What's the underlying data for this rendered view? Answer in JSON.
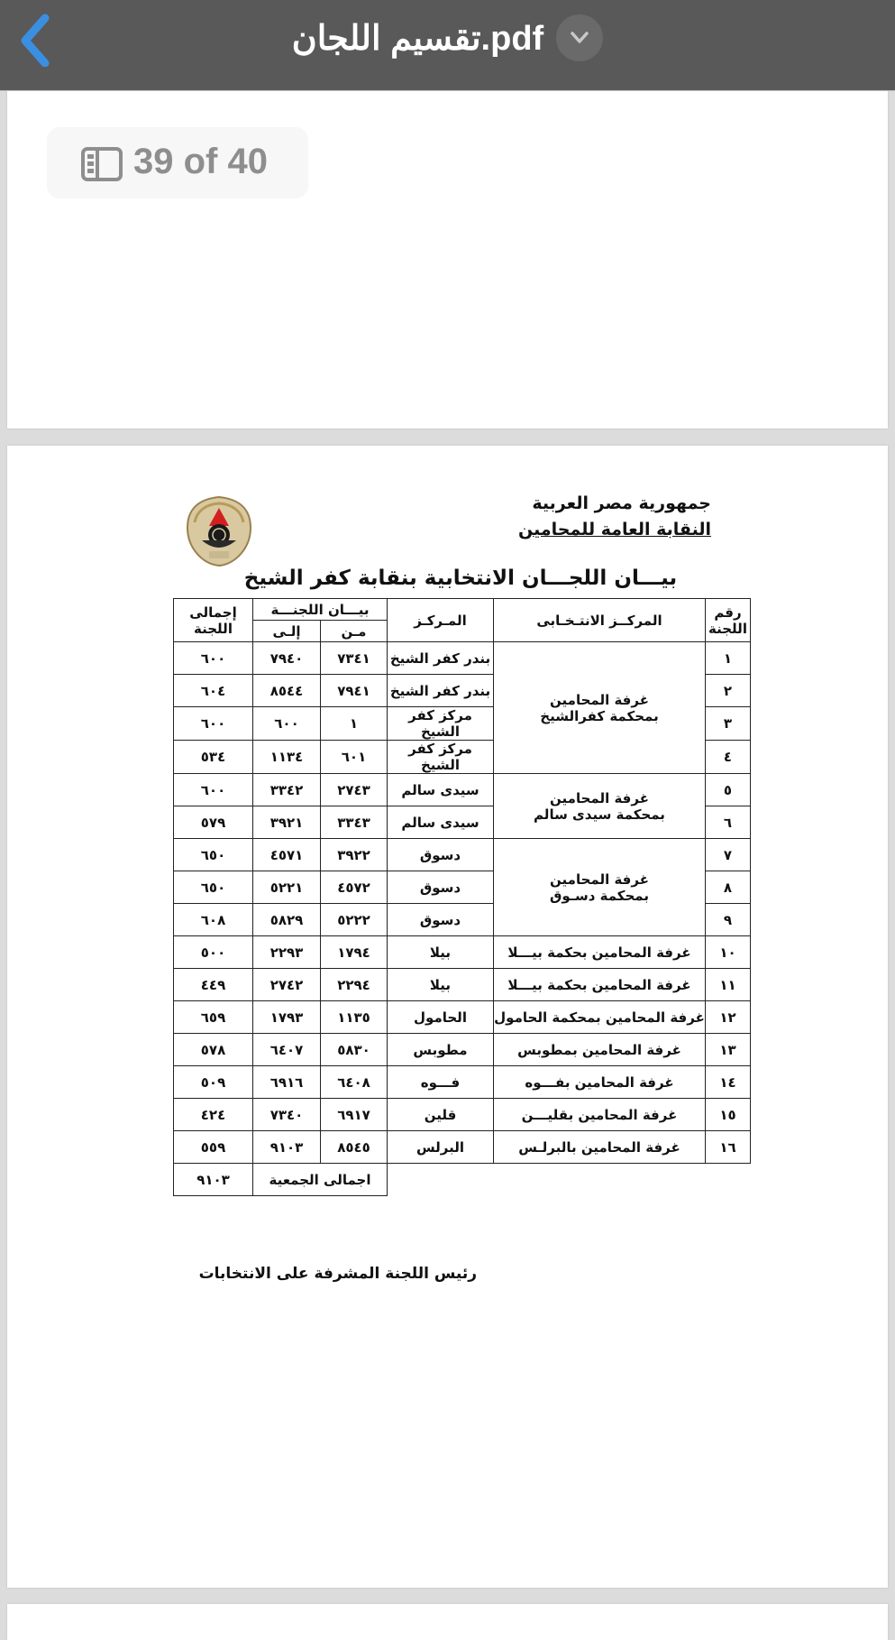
{
  "topbar": {
    "title": "تقسيم اللجان.pdf",
    "back_icon": "chevron-left-icon",
    "menu_icon": "chevron-down-icon",
    "accent": "#3b8fe0"
  },
  "page_badge": {
    "label": "39 of 40",
    "icon": "sidebar-icon"
  },
  "document": {
    "header_line1": "جمهورية مصر العربية",
    "header_line2": "النقابة العامة للمحامين",
    "logo_text": "1912",
    "title": "بيـــان اللجـــان الانتخابية بنقابة كفر الشيخ",
    "table": {
      "headers": {
        "num": "رقم اللجنة",
        "electoral": "المركــز الانتـخـابى",
        "center": "المـركـز",
        "range": "بيـــان اللجنـــة",
        "from": "مـن",
        "to": "إلـى",
        "total": "إجمالى اللجنة"
      },
      "groups": [
        {
          "electoral": "غرفة المحامين بمحكمة كفرالشيخ",
          "rows": [
            {
              "num": "١",
              "center": "بندر كفر الشيخ",
              "from": "٧٣٤١",
              "to": "٧٩٤٠",
              "total": "٦٠٠"
            },
            {
              "num": "٢",
              "center": "بندر كفر الشيخ",
              "from": "٧٩٤١",
              "to": "٨٥٤٤",
              "total": "٦٠٤"
            },
            {
              "num": "٣",
              "center": "مركز كفر الشيخ",
              "from": "١",
              "to": "٦٠٠",
              "total": "٦٠٠"
            },
            {
              "num": "٤",
              "center": "مركز كفر الشيخ",
              "from": "٦٠١",
              "to": "١١٣٤",
              "total": "٥٣٤"
            }
          ]
        },
        {
          "electoral": "غرفة المحامين بمحكمة سيدى سالم",
          "rows": [
            {
              "num": "٥",
              "center": "سيدى سالم",
              "from": "٢٧٤٣",
              "to": "٣٣٤٢",
              "total": "٦٠٠"
            },
            {
              "num": "٦",
              "center": "سيدى سالم",
              "from": "٣٣٤٣",
              "to": "٣٩٢١",
              "total": "٥٧٩"
            }
          ]
        },
        {
          "electoral": "غرفة المحامين بمحكمة دسـوق",
          "rows": [
            {
              "num": "٧",
              "center": "دسوق",
              "from": "٣٩٢٢",
              "to": "٤٥٧١",
              "total": "٦٥٠"
            },
            {
              "num": "٨",
              "center": "دسوق",
              "from": "٤٥٧٢",
              "to": "٥٢٢١",
              "total": "٦٥٠"
            },
            {
              "num": "٩",
              "center": "دسوق",
              "from": "٥٢٢٢",
              "to": "٥٨٢٩",
              "total": "٦٠٨"
            }
          ]
        },
        {
          "electoral": "غرفة المحامين بحكمة بيـــلا",
          "rows": [
            {
              "num": "١٠",
              "center": "بيلا",
              "from": "١٧٩٤",
              "to": "٢٢٩٣",
              "total": "٥٠٠"
            }
          ]
        },
        {
          "electoral": "غرفة المحامين بحكمة بيـــلا",
          "rows": [
            {
              "num": "١١",
              "center": "بيلا",
              "from": "٢٢٩٤",
              "to": "٢٧٤٢",
              "total": "٤٤٩"
            }
          ]
        },
        {
          "electoral": "غرفة المحامين بمحكمة الحامول",
          "rows": [
            {
              "num": "١٢",
              "center": "الحامول",
              "from": "١١٣٥",
              "to": "١٧٩٣",
              "total": "٦٥٩"
            }
          ]
        },
        {
          "electoral": "غرفة المحامين بمطوبس",
          "rows": [
            {
              "num": "١٣",
              "center": "مطوبس",
              "from": "٥٨٣٠",
              "to": "٦٤٠٧",
              "total": "٥٧٨"
            }
          ]
        },
        {
          "electoral": "غرفة المحامين بفـــوه",
          "rows": [
            {
              "num": "١٤",
              "center": "فـــوه",
              "from": "٦٤٠٨",
              "to": "٦٩١٦",
              "total": "٥٠٩"
            }
          ]
        },
        {
          "electoral": "غرفة المحامين بقليـــن",
          "rows": [
            {
              "num": "١٥",
              "center": "قلين",
              "from": "٦٩١٧",
              "to": "٧٣٤٠",
              "total": "٤٢٤"
            }
          ]
        },
        {
          "electoral": "غرفة المحامين بالبرلـس",
          "rows": [
            {
              "num": "١٦",
              "center": "البرلس",
              "from": "٨٥٤٥",
              "to": "٩١٠٣",
              "total": "٥٥٩"
            }
          ]
        }
      ],
      "grand_total_label": "اجمالى الجمعية",
      "grand_total": "٩١٠٣"
    },
    "signature": "رئيس اللجنة المشرفة على الانتخابات"
  }
}
